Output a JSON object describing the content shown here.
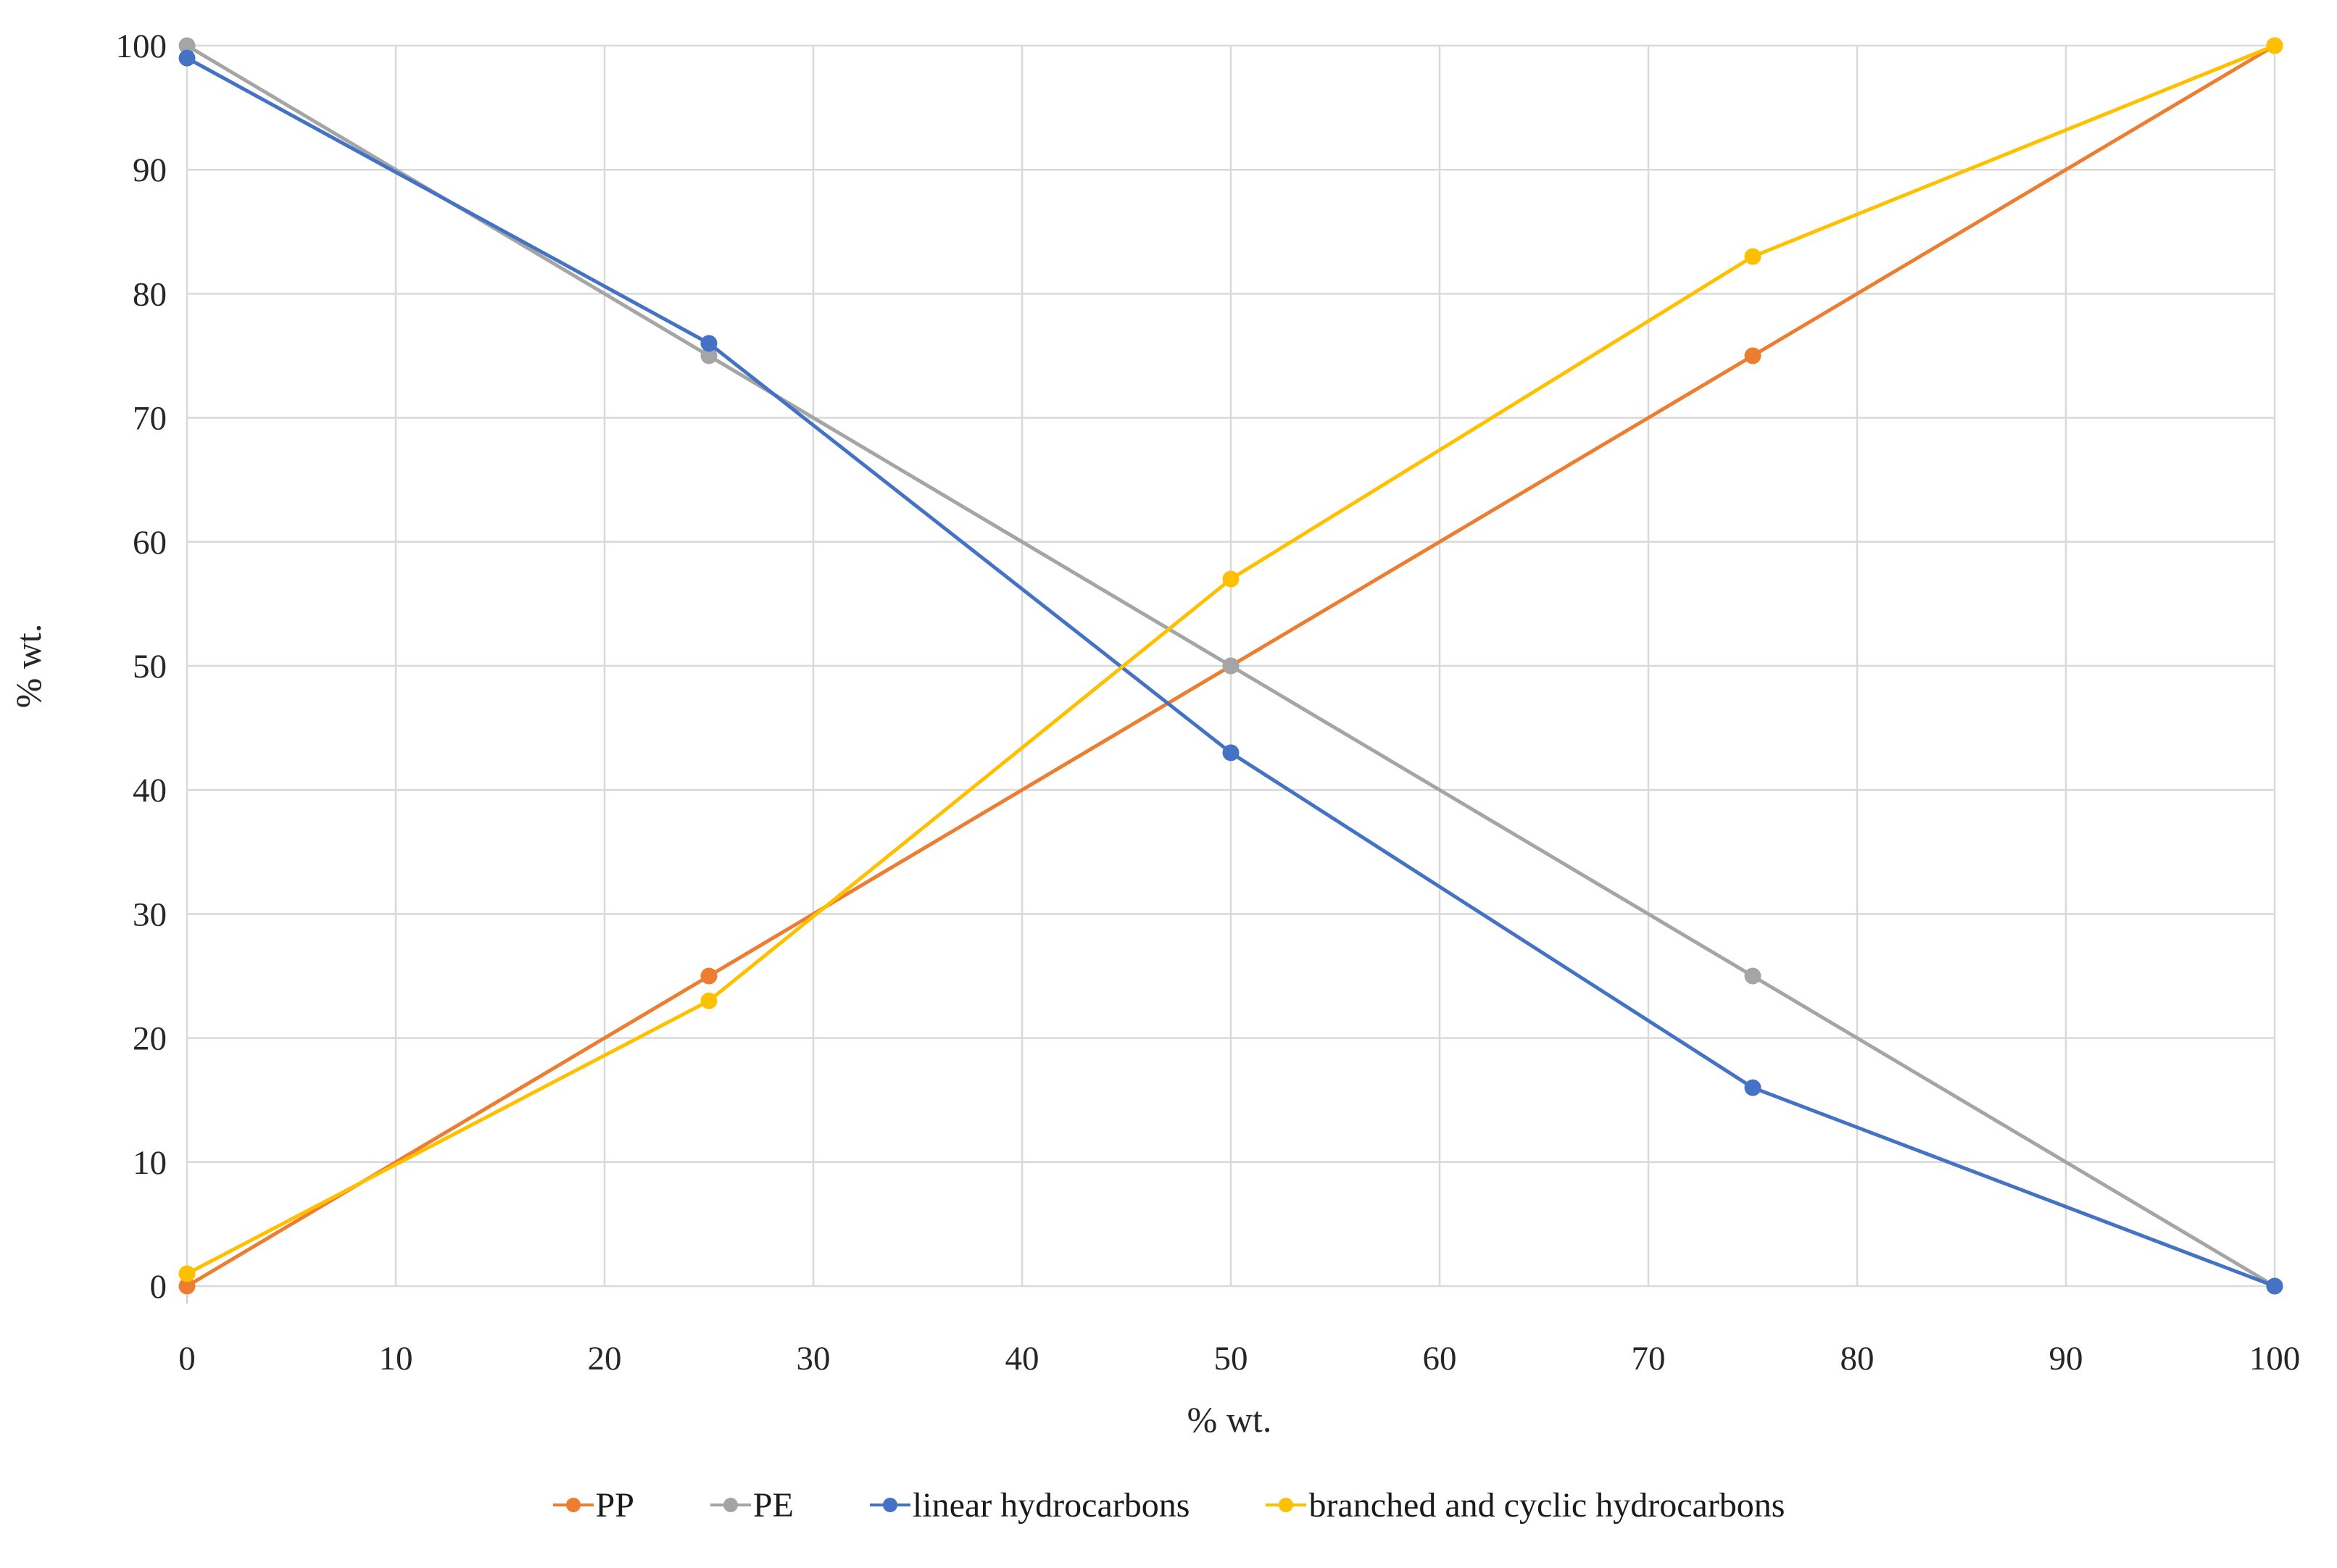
{
  "chart": {
    "background_color": "#ffffff",
    "grid_color": "#d9d9d9",
    "axis_color": "#d0d0d0",
    "text_color": "#262626"
  },
  "chart_data": {
    "type": "line",
    "title": "",
    "xlabel": "% wt.",
    "ylabel": "% wt.",
    "xlim": [
      0,
      100
    ],
    "ylim": [
      0,
      100
    ],
    "x_ticks": [
      0,
      10,
      20,
      30,
      40,
      50,
      60,
      70,
      80,
      90,
      100
    ],
    "y_ticks": [
      0,
      10,
      20,
      30,
      40,
      50,
      60,
      70,
      80,
      90,
      100
    ],
    "grid": "on",
    "legend_position": "bottom",
    "x": [
      0,
      25,
      50,
      75,
      100
    ],
    "series": [
      {
        "name": "PP",
        "color": "#ED7D31",
        "values": [
          0,
          25,
          50,
          75,
          100
        ]
      },
      {
        "name": "PE",
        "color": "#A5A5A5",
        "values": [
          100,
          75,
          50,
          25,
          0
        ]
      },
      {
        "name": "linear hydrocarbons",
        "color": "#4472C4",
        "values": [
          99,
          76,
          43,
          16,
          0
        ]
      },
      {
        "name": "branched and cyclic hydrocarbons",
        "color": "#FFC000",
        "values": [
          1,
          23,
          57,
          83,
          100
        ]
      }
    ]
  }
}
